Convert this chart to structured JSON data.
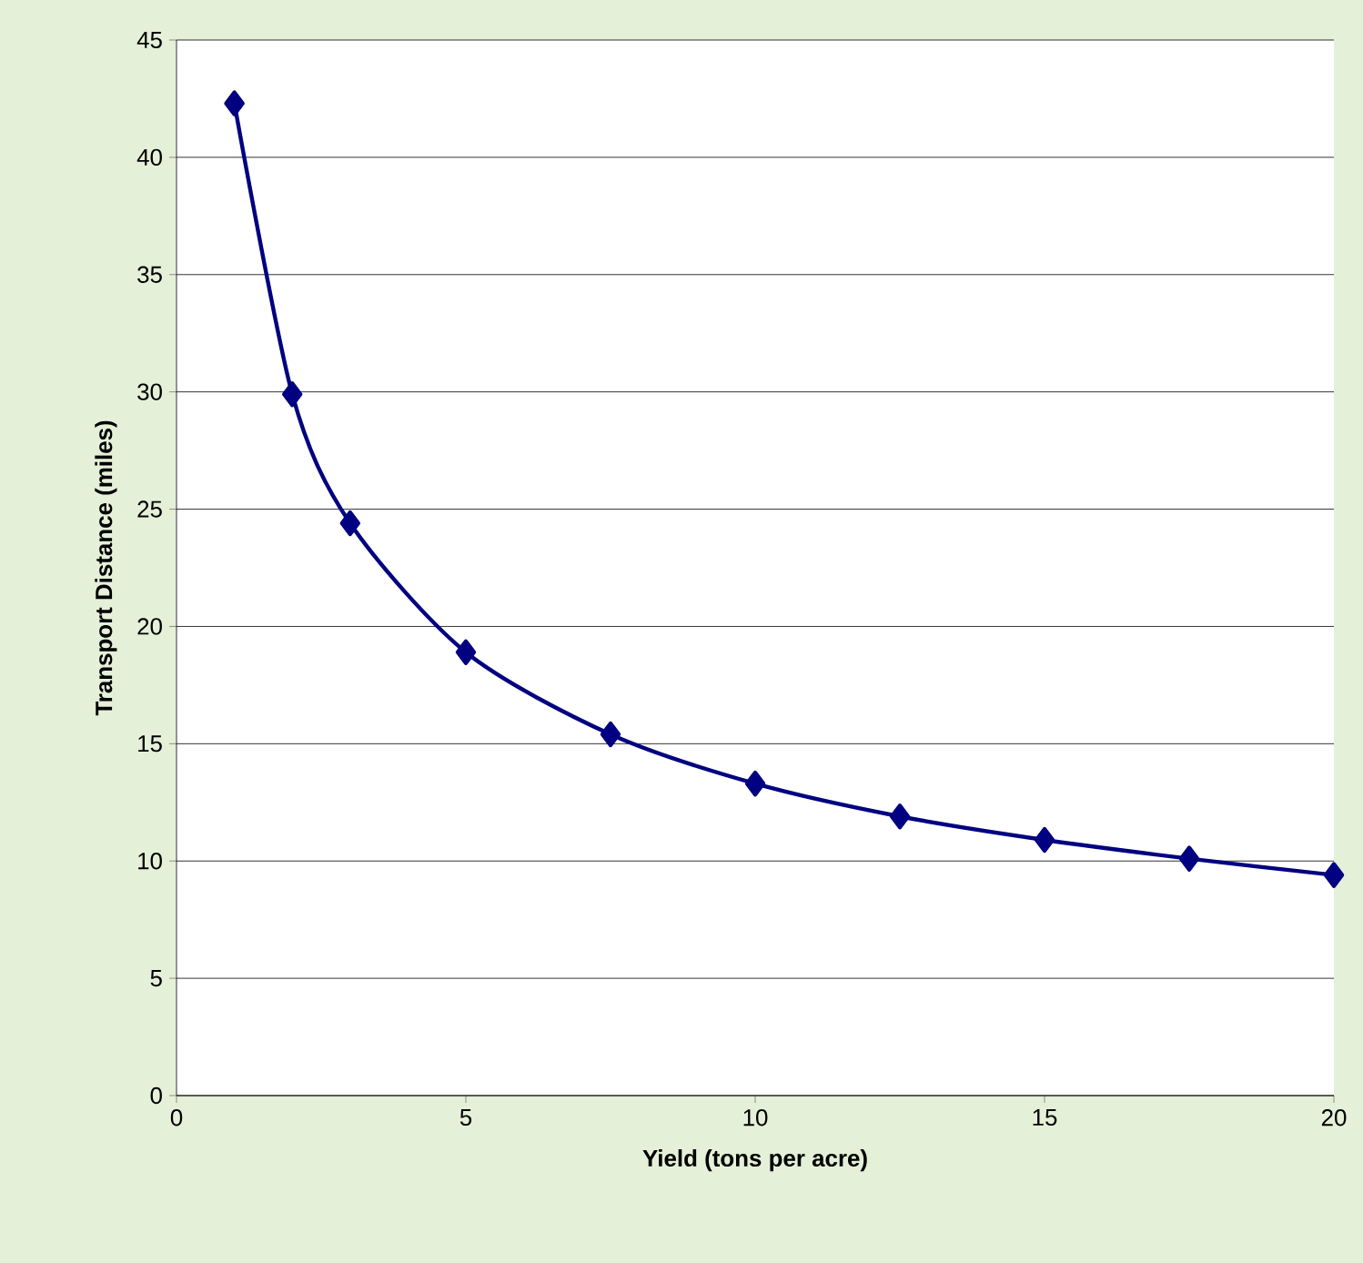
{
  "chart_data": {
    "type": "line",
    "xlabel": "Yield (tons per acre)",
    "ylabel": "Transport Distance (miles)",
    "x": [
      1,
      2,
      3,
      5,
      7.5,
      10,
      12.5,
      15,
      17.5,
      20
    ],
    "series": [
      {
        "color": "#000080",
        "values": [
          42.3,
          29.9,
          24.4,
          18.9,
          15.4,
          13.3,
          11.9,
          10.9,
          10.1,
          9.4
        ]
      }
    ],
    "xlim": [
      0,
      20
    ],
    "xticks": [
      0,
      5,
      10,
      15,
      20
    ],
    "ylim": [
      0,
      45
    ],
    "yticks": [
      0,
      5,
      10,
      15,
      20,
      25,
      30,
      35,
      40,
      45
    ],
    "grid": "y",
    "legend": false,
    "marker": "diamond",
    "line_style": "solid"
  }
}
